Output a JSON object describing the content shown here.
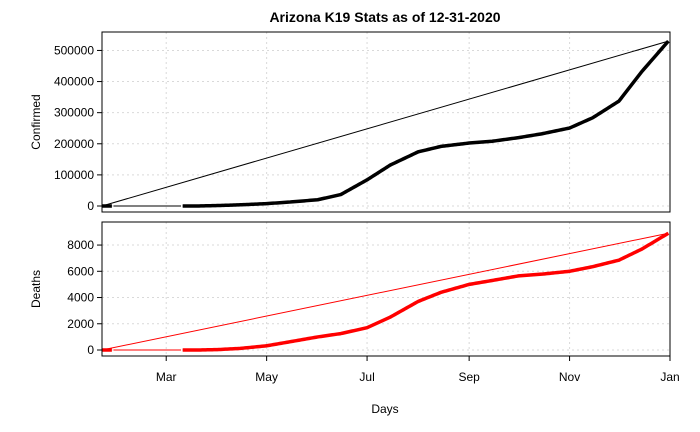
{
  "chart_data": {
    "title": "Arizona K19 Stats as of 12-31-2020",
    "xlabel": "Days",
    "x_tick_labels": [
      "Mar",
      "May",
      "Jul",
      "Sep",
      "Nov",
      "Jan"
    ],
    "x_tick_dates": [
      "2020-03-01",
      "2020-05-01",
      "2020-07-01",
      "2020-09-01",
      "2020-11-01",
      "2021-01-01"
    ],
    "x_range": [
      "2020-01-22",
      "2021-01-01"
    ],
    "grid": true,
    "line_colors": [
      "#000000",
      "#ff0000"
    ],
    "panels": [
      {
        "type": "line",
        "ylabel": "Confirmed",
        "color": "#000000",
        "ylim": [
          0,
          540000
        ],
        "y_ticks": [
          0,
          100000,
          200000,
          300000,
          400000,
          500000
        ],
        "trend_line": {
          "from": [
            "2020-01-22",
            0
          ],
          "to": [
            "2020-12-31",
            530000
          ]
        },
        "points": [
          [
            "2020-01-22",
            0
          ],
          [
            "2020-01-28",
            1
          ],
          [
            "2020-03-11",
            9
          ],
          [
            "2020-03-20",
            63
          ],
          [
            "2020-04-01",
            1413
          ],
          [
            "2020-04-15",
            3809
          ],
          [
            "2020-05-01",
            7648
          ],
          [
            "2020-05-15",
            12674
          ],
          [
            "2020-06-01",
            20123
          ],
          [
            "2020-06-15",
            36705
          ],
          [
            "2020-07-01",
            84092
          ],
          [
            "2020-07-15",
            131354
          ],
          [
            "2020-08-01",
            174010
          ],
          [
            "2020-08-15",
            191720
          ],
          [
            "2020-09-01",
            202342
          ],
          [
            "2020-09-15",
            208128
          ],
          [
            "2020-10-01",
            219763
          ],
          [
            "2020-10-15",
            231897
          ],
          [
            "2020-11-01",
            250633
          ],
          [
            "2020-11-15",
            283443
          ],
          [
            "2020-12-01",
            337139
          ],
          [
            "2020-12-15",
            432793
          ],
          [
            "2020-12-31",
            530000
          ]
        ]
      },
      {
        "type": "line",
        "ylabel": "Deaths",
        "color": "#ff0000",
        "ylim": [
          0,
          9300
        ],
        "y_ticks": [
          0,
          2000,
          4000,
          6000,
          8000
        ],
        "trend_line": {
          "from": [
            "2020-01-22",
            0
          ],
          "to": [
            "2020-12-31",
            8900
          ]
        },
        "points": [
          [
            "2020-01-22",
            0
          ],
          [
            "2020-01-28",
            0
          ],
          [
            "2020-03-11",
            0
          ],
          [
            "2020-03-20",
            0
          ],
          [
            "2020-04-01",
            29
          ],
          [
            "2020-04-15",
            122
          ],
          [
            "2020-05-01",
            320
          ],
          [
            "2020-05-15",
            624
          ],
          [
            "2020-06-01",
            996
          ],
          [
            "2020-06-15",
            1250
          ],
          [
            "2020-07-01",
            1700
          ],
          [
            "2020-07-15",
            2500
          ],
          [
            "2020-08-01",
            3700
          ],
          [
            "2020-08-15",
            4400
          ],
          [
            "2020-09-01",
            5000
          ],
          [
            "2020-09-15",
            5300
          ],
          [
            "2020-10-01",
            5650
          ],
          [
            "2020-10-15",
            5780
          ],
          [
            "2020-11-01",
            6000
          ],
          [
            "2020-11-15",
            6350
          ],
          [
            "2020-12-01",
            6850
          ],
          [
            "2020-12-15",
            7700
          ],
          [
            "2020-12-31",
            8900
          ]
        ]
      }
    ]
  }
}
